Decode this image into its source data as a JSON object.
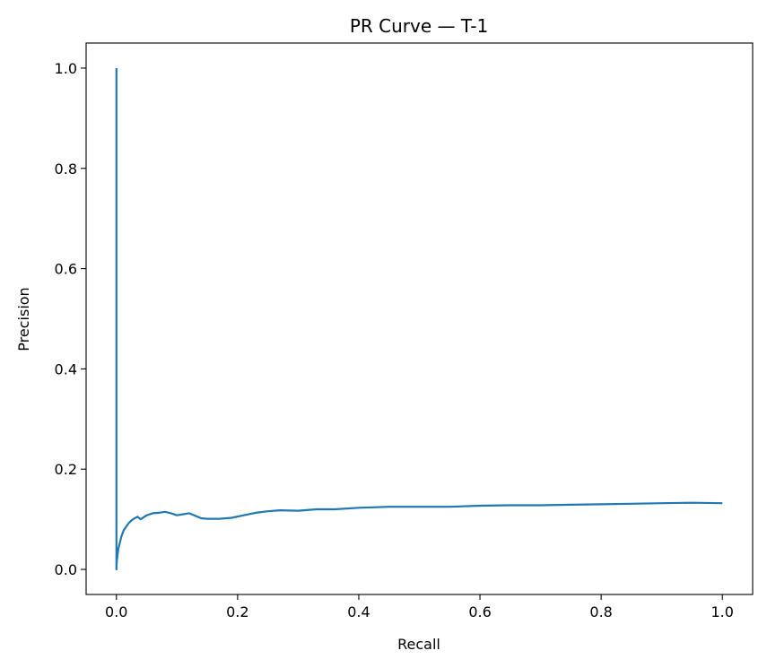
{
  "chart_data": {
    "type": "line",
    "title": "PR Curve — T-1",
    "xlabel": "Recall",
    "ylabel": "Precision",
    "xlim": [
      -0.05,
      1.05
    ],
    "ylim": [
      -0.05,
      1.05
    ],
    "grid": false,
    "x_ticks": [
      {
        "value": 0.0,
        "label": "0.0"
      },
      {
        "value": 0.2,
        "label": "0.2"
      },
      {
        "value": 0.4,
        "label": "0.4"
      },
      {
        "value": 0.6,
        "label": "0.6"
      },
      {
        "value": 0.8,
        "label": "0.8"
      },
      {
        "value": 1.0,
        "label": "1.0"
      }
    ],
    "y_ticks": [
      {
        "value": 0.0,
        "label": "0.0"
      },
      {
        "value": 0.2,
        "label": "0.2"
      },
      {
        "value": 0.4,
        "label": "0.4"
      },
      {
        "value": 0.6,
        "label": "0.6"
      },
      {
        "value": 0.8,
        "label": "0.8"
      },
      {
        "value": 1.0,
        "label": "1.0"
      }
    ],
    "series": [
      {
        "color": "#1f77b4",
        "x": [
          0.0,
          0.0,
          0.0,
          0.001,
          0.002,
          0.003,
          0.005,
          0.008,
          0.012,
          0.016,
          0.02,
          0.025,
          0.03,
          0.035,
          0.04,
          0.05,
          0.06,
          0.07,
          0.08,
          0.09,
          0.1,
          0.11,
          0.12,
          0.13,
          0.14,
          0.15,
          0.17,
          0.19,
          0.21,
          0.23,
          0.25,
          0.27,
          0.3,
          0.33,
          0.36,
          0.4,
          0.45,
          0.5,
          0.55,
          0.6,
          0.65,
          0.7,
          0.75,
          0.8,
          0.85,
          0.9,
          0.95,
          1.0
        ],
        "y": [
          1.0,
          0.0,
          0.005,
          0.02,
          0.03,
          0.04,
          0.05,
          0.065,
          0.078,
          0.085,
          0.092,
          0.098,
          0.102,
          0.105,
          0.1,
          0.108,
          0.112,
          0.113,
          0.115,
          0.112,
          0.108,
          0.11,
          0.112,
          0.107,
          0.102,
          0.101,
          0.101,
          0.103,
          0.108,
          0.113,
          0.116,
          0.118,
          0.117,
          0.12,
          0.12,
          0.123,
          0.125,
          0.125,
          0.125,
          0.127,
          0.128,
          0.128,
          0.129,
          0.13,
          0.131,
          0.132,
          0.133,
          0.132
        ]
      }
    ]
  }
}
